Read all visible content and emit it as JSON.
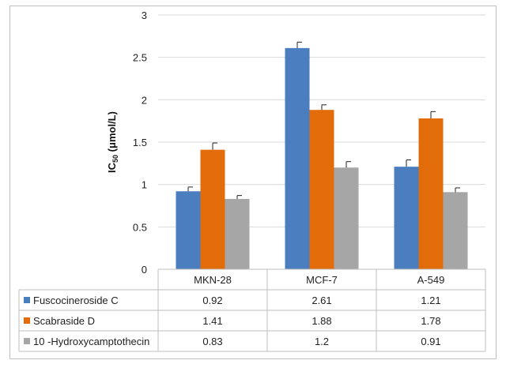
{
  "chart_data": {
    "type": "bar",
    "ylabel_main": "IC",
    "ylabel_sub": "50",
    "ylabel_unit": " (μmol/L)",
    "categories": [
      "MKN-28",
      "MCF-7",
      "A-549"
    ],
    "ylim": [
      0,
      3
    ],
    "yticks": [
      0,
      0.5,
      1,
      1.5,
      2,
      2.5,
      3
    ],
    "grid": true,
    "legend": "data-table",
    "series": [
      {
        "name": "Fuscocineroside C",
        "color": "#4a7ebf",
        "values": [
          0.92,
          2.61,
          1.21
        ],
        "errors": [
          0.05,
          0.07,
          0.08
        ],
        "labels": [
          "0.92",
          "2.61",
          "1.21"
        ]
      },
      {
        "name": "Scabraside D",
        "color": "#e36c0a",
        "values": [
          1.41,
          1.88,
          1.78
        ],
        "errors": [
          0.08,
          0.06,
          0.08
        ],
        "labels": [
          "1.41",
          "1.88",
          "1.78"
        ]
      },
      {
        "name": "10 -Hydroxycamptothecin",
        "color": "#a6a6a6",
        "values": [
          0.83,
          1.2,
          0.91
        ],
        "errors": [
          0.04,
          0.07,
          0.05
        ],
        "labels": [
          "0.83",
          "1.2",
          "0.91"
        ]
      }
    ]
  }
}
